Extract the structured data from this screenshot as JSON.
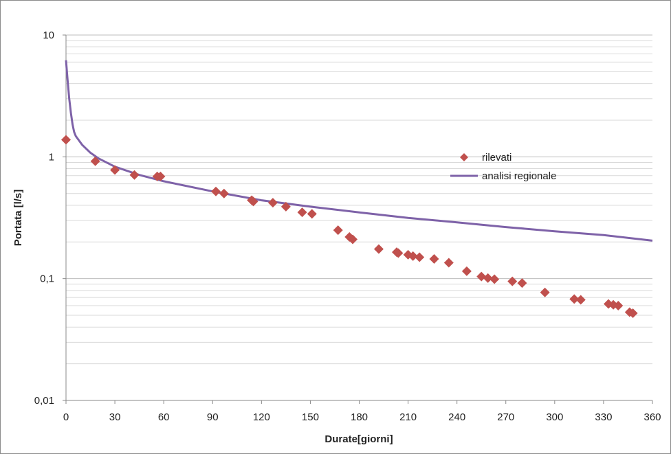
{
  "chart_data": {
    "type": "scatter",
    "ylabel": "Portata  [l/s]",
    "xlabel": "Durate[giorni]",
    "x_ticks": [
      "0",
      "30",
      "60",
      "90",
      "120",
      "150",
      "180",
      "210",
      "240",
      "270",
      "300",
      "330",
      "360"
    ],
    "y_ticks": [
      "0,01",
      "0,1",
      "1",
      "10"
    ],
    "xlim": [
      0,
      360
    ],
    "ylim": [
      0.01,
      10
    ],
    "y_scale": "log",
    "grid": true,
    "legend_position": "right-center",
    "series": [
      {
        "name": "rilevati",
        "kind": "scatter",
        "marker": "diamond",
        "color": "#c0504d",
        "points": [
          [
            0,
            1.38
          ],
          [
            18,
            0.92
          ],
          [
            30,
            0.78
          ],
          [
            42,
            0.71
          ],
          [
            56,
            0.69
          ],
          [
            58,
            0.69
          ],
          [
            92,
            0.52
          ],
          [
            97,
            0.5
          ],
          [
            114,
            0.44
          ],
          [
            115,
            0.43
          ],
          [
            127,
            0.42
          ],
          [
            135,
            0.39
          ],
          [
            145,
            0.35
          ],
          [
            151,
            0.34
          ],
          [
            167,
            0.25
          ],
          [
            174,
            0.22
          ],
          [
            176,
            0.21
          ],
          [
            192,
            0.175
          ],
          [
            203,
            0.165
          ],
          [
            204,
            0.162
          ],
          [
            210,
            0.157
          ],
          [
            213,
            0.153
          ],
          [
            217,
            0.15
          ],
          [
            226,
            0.145
          ],
          [
            235,
            0.135
          ],
          [
            246,
            0.115
          ],
          [
            255,
            0.104
          ],
          [
            259,
            0.101
          ],
          [
            263,
            0.099
          ],
          [
            274,
            0.095
          ],
          [
            280,
            0.092
          ],
          [
            294,
            0.077
          ],
          [
            312,
            0.068
          ],
          [
            316,
            0.067
          ],
          [
            333,
            0.062
          ],
          [
            336,
            0.061
          ],
          [
            339,
            0.06
          ],
          [
            346,
            0.053
          ],
          [
            348,
            0.052
          ]
        ]
      },
      {
        "name": "analisi regionale",
        "kind": "line",
        "color": "#7e62a8",
        "points": [
          [
            0,
            6.2
          ],
          [
            1,
            4.2
          ],
          [
            2,
            3.0
          ],
          [
            3,
            2.3
          ],
          [
            4,
            1.85
          ],
          [
            5,
            1.6
          ],
          [
            6,
            1.48
          ],
          [
            10,
            1.25
          ],
          [
            15,
            1.08
          ],
          [
            20,
            0.97
          ],
          [
            30,
            0.83
          ],
          [
            45,
            0.71
          ],
          [
            60,
            0.63
          ],
          [
            90,
            0.52
          ],
          [
            120,
            0.44
          ],
          [
            150,
            0.39
          ],
          [
            180,
            0.35
          ],
          [
            210,
            0.315
          ],
          [
            240,
            0.29
          ],
          [
            270,
            0.265
          ],
          [
            300,
            0.245
          ],
          [
            330,
            0.228
          ],
          [
            360,
            0.205
          ]
        ]
      }
    ]
  }
}
